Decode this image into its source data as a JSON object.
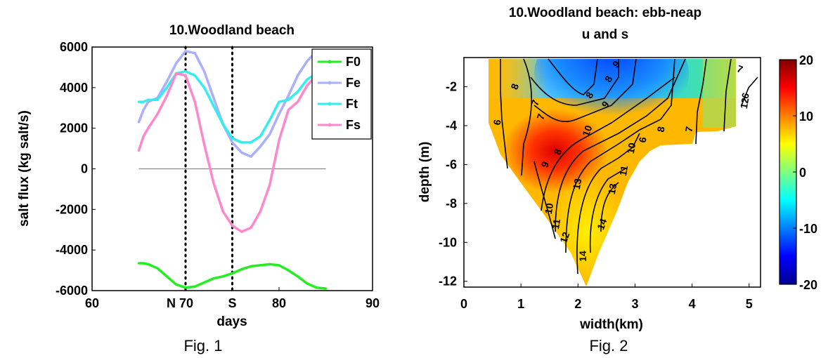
{
  "chart_data": [
    {
      "type": "line",
      "title": "10.Woodland beach",
      "xlabel": "days",
      "ylabel": "salt flux (kg salt/s)",
      "xlim": [
        60,
        90
      ],
      "ylim": [
        -6000,
        6000
      ],
      "xtick_labels": [
        "60",
        "N 70",
        "S",
        "80",
        "90"
      ],
      "ytick_labels": [
        "6000",
        "4000",
        "2000",
        "0",
        "-2000",
        "-4000",
        "-6000"
      ],
      "ytick_values": [
        6000,
        4000,
        2000,
        0,
        -2000,
        -4000,
        -6000
      ],
      "vlines": [
        {
          "x": 70,
          "label": "N"
        },
        {
          "x": 75,
          "label": "S"
        }
      ],
      "hline": 0,
      "legend_position": "top-right",
      "series": [
        {
          "name": "F0",
          "color": "#22ee22",
          "x": [
            65,
            65.5,
            66,
            67,
            68,
            69,
            70,
            71,
            72,
            73,
            74,
            75,
            76,
            77,
            78,
            79,
            80,
            81,
            82,
            83,
            84,
            85
          ],
          "y": [
            -4650,
            -4650,
            -4700,
            -4900,
            -5300,
            -5700,
            -5850,
            -5800,
            -5600,
            -5400,
            -5300,
            -5150,
            -4950,
            -4800,
            -4750,
            -4700,
            -4750,
            -5000,
            -5300,
            -5650,
            -5850,
            -5900
          ]
        },
        {
          "name": "Fe",
          "color": "#aab0ff",
          "x": [
            65,
            65.5,
            66,
            67,
            68,
            69,
            70,
            71,
            72,
            73,
            74,
            75,
            76,
            77,
            78,
            79,
            80,
            81,
            82,
            83,
            84,
            85
          ],
          "y": [
            2300,
            2900,
            3300,
            3500,
            4300,
            5200,
            5800,
            5700,
            4800,
            3500,
            2200,
            1300,
            800,
            600,
            1100,
            1700,
            2700,
            3600,
            4600,
            5300,
            5800,
            5700
          ]
        },
        {
          "name": "Ft",
          "color": "#33eeee",
          "x": [
            65,
            65.5,
            66,
            67,
            68,
            69,
            70,
            71,
            72,
            73,
            74,
            75,
            76,
            77,
            78,
            79,
            80,
            81,
            82,
            83,
            84,
            85
          ],
          "y": [
            3300,
            3300,
            3400,
            3400,
            4000,
            4700,
            4800,
            4600,
            4000,
            3100,
            2200,
            1500,
            1300,
            1300,
            1600,
            2400,
            3300,
            3400,
            3800,
            4400,
            4700,
            4700
          ]
        },
        {
          "name": "Fs",
          "color": "#ff88cc",
          "x": [
            65,
            65.5,
            66,
            67,
            68,
            69,
            70,
            71,
            72,
            73,
            74,
            75,
            76,
            77,
            78,
            79,
            80,
            81,
            82,
            83,
            84,
            85
          ],
          "y": [
            900,
            1600,
            2000,
            2700,
            3600,
            4700,
            4600,
            3300,
            1200,
            -700,
            -2100,
            -2800,
            -3100,
            -2900,
            -2100,
            -800,
            1400,
            2900,
            3300,
            4100,
            4600,
            4700
          ]
        }
      ]
    },
    {
      "type": "heatmap",
      "title": "10.Woodland beach: ebb-neap",
      "subtitle": "u and s",
      "xlabel": "width(km)",
      "ylabel": "depth (m)",
      "xlim": [
        0,
        5.2
      ],
      "ylim": [
        -12.3,
        -0.5
      ],
      "xticks": [
        "0",
        "1",
        "2",
        "3",
        "4",
        "5"
      ],
      "yticks": [
        "-2",
        "-4",
        "-6",
        "-8",
        "-10",
        "-12"
      ],
      "colorbar": {
        "min": -20,
        "max": 20,
        "ticks": [
          "20",
          "10",
          "0",
          "-10",
          "-20"
        ],
        "colormap": "jet"
      },
      "contour_labels": [
        "8",
        "7",
        "6",
        "8",
        "9",
        "7",
        "8",
        "6",
        "8",
        "9",
        "10",
        "10",
        "7",
        "9",
        "11",
        "12",
        "13",
        "14",
        "10",
        "11",
        "12",
        "14",
        "13",
        "7",
        "8",
        "6"
      ]
    }
  ],
  "captions": {
    "fig1": "Fig. 1",
    "fig2": "Fig. 2"
  }
}
